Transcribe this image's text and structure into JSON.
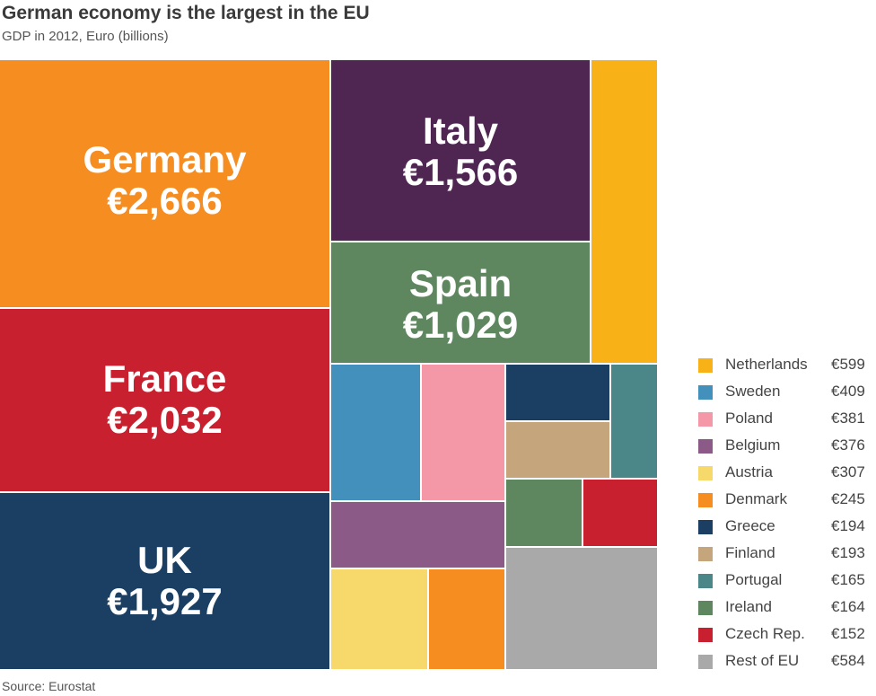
{
  "header": {
    "title": "German economy is the largest in the EU",
    "subtitle": "GDP in 2012, Euro (billions)"
  },
  "footer": {
    "source": "Source: Eurostat"
  },
  "colors": {
    "Germany": "#f58d21",
    "France": "#c8202f",
    "UK": "#1b3f63",
    "Italy": "#4f2652",
    "Spain": "#5e8760",
    "Netherlands": "#f8b218",
    "Sweden": "#4390bd",
    "Poland": "#f497a6",
    "Belgium": "#8b5a86",
    "Austria": "#f7d86a",
    "Denmark": "#f58d21",
    "Greece": "#1b3f63",
    "Finland": "#c5a57c",
    "Portugal": "#4b8688",
    "Ireland": "#5e8760",
    "Czech Rep.": "#c8202f",
    "Rest of EU": "#a9a9a9"
  },
  "chart_data": {
    "type": "treemap",
    "title": "German economy is the largest in the EU",
    "subtitle": "GDP in 2012, Euro (billions)",
    "unit": "Euro (billions)",
    "legend_position": "right",
    "labeled": [
      {
        "name": "Germany",
        "value": 2666,
        "label": "€2,666"
      },
      {
        "name": "France",
        "value": 2032,
        "label": "€2,032"
      },
      {
        "name": "UK",
        "value": 1927,
        "label": "€1,927"
      },
      {
        "name": "Italy",
        "value": 1566,
        "label": "€1,566"
      },
      {
        "name": "Spain",
        "value": 1029,
        "label": "€1,029"
      }
    ],
    "legend": [
      {
        "name": "Netherlands",
        "value": 599,
        "label": "€599"
      },
      {
        "name": "Sweden",
        "value": 409,
        "label": "€409"
      },
      {
        "name": "Poland",
        "value": 381,
        "label": "€381"
      },
      {
        "name": "Belgium",
        "value": 376,
        "label": "€376"
      },
      {
        "name": "Austria",
        "value": 307,
        "label": "€307"
      },
      {
        "name": "Denmark",
        "value": 245,
        "label": "€245"
      },
      {
        "name": "Greece",
        "value": 194,
        "label": "€194"
      },
      {
        "name": "Finland",
        "value": 193,
        "label": "€193"
      },
      {
        "name": "Portugal",
        "value": 165,
        "label": "€165"
      },
      {
        "name": "Ireland",
        "value": 164,
        "label": "€164"
      },
      {
        "name": "Czech Rep.",
        "value": 152,
        "label": "€152"
      },
      {
        "name": "Rest of EU",
        "value": 584,
        "label": "€584"
      }
    ]
  }
}
